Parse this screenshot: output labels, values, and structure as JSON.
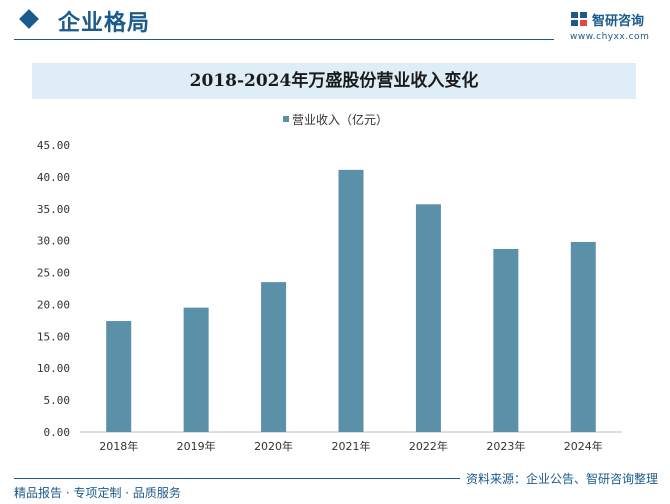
{
  "header": {
    "section_title": "企业格局",
    "brand_name": "智研咨询",
    "brand_url": "www.chyxx.com",
    "accent_color": "#1b5a8c"
  },
  "footer": {
    "left_text": "精品报告 · 专项定制 · 品质服务",
    "source_text": "资料来源：企业公告、智研咨询整理"
  },
  "chart_data": {
    "type": "bar",
    "title": "2018-2024年万盛股份营业收入变化",
    "categories": [
      "2018年",
      "2019年",
      "2020年",
      "2021年",
      "2022年",
      "2023年",
      "2024年"
    ],
    "series": [
      {
        "name": "营业收入（亿元）",
        "color": "#5b91a8",
        "values": [
          17.4,
          19.5,
          23.5,
          41.1,
          35.7,
          28.7,
          29.8
        ]
      }
    ],
    "y_ticks": [
      "0.00",
      "5.00",
      "10.00",
      "15.00",
      "20.00",
      "25.00",
      "30.00",
      "35.00",
      "40.00",
      "45.00"
    ],
    "ylim": [
      0,
      45
    ],
    "grid": false,
    "legend_position": "top-center"
  }
}
